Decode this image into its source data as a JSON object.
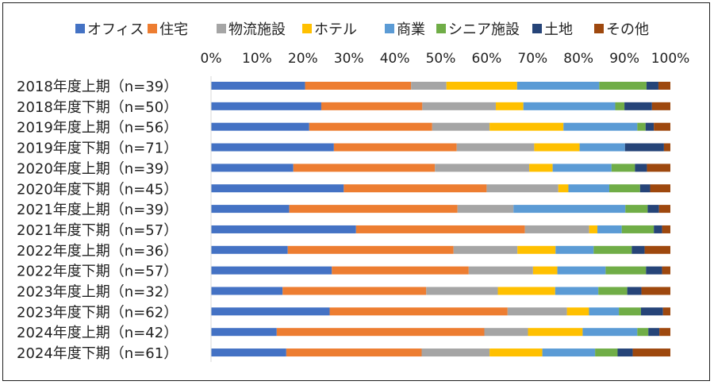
{
  "chart_data": {
    "type": "bar",
    "orientation": "horizontal",
    "stacked": "percent",
    "title": "",
    "xlabel": "",
    "ylabel": "",
    "xlim": [
      0,
      100
    ],
    "x_ticks": [
      "0%",
      "10%",
      "20%",
      "30%",
      "40%",
      "50%",
      "60%",
      "70%",
      "80%",
      "90%",
      "100%"
    ],
    "grid": false,
    "legend_position": "top",
    "categories": [
      "2018年度上期（n=39）",
      "2018年度下期（n=50）",
      "2019年度上期（n=56）",
      "2019年度下期（n=71）",
      "2020年度上期（n=39）",
      "2020年度下期（n=45）",
      "2021年度上期（n=39）",
      "2021年度下期（n=57）",
      "2022年度上期（n=36）",
      "2022年度下期（n=57）",
      "2023年度上期（n=32）",
      "2023年度下期（n=62）",
      "2024年度上期（n=42）",
      "2024年度下期（n=61）"
    ],
    "series": [
      {
        "name": "オフィス",
        "color": "#4472C4",
        "values": [
          20.5,
          24.0,
          21.4,
          26.8,
          17.9,
          28.9,
          17.9,
          31.6,
          16.7,
          26.3,
          15.6,
          25.8,
          14.3,
          16.4
        ]
      },
      {
        "name": "住宅",
        "color": "#ED7D31",
        "values": [
          23.1,
          22.0,
          26.8,
          26.8,
          30.8,
          31.1,
          38.5,
          36.8,
          36.1,
          29.8,
          31.3,
          38.7,
          45.2,
          29.5
        ]
      },
      {
        "name": "物流施設",
        "color": "#A5A5A5",
        "values": [
          7.7,
          16.0,
          12.5,
          16.9,
          20.5,
          15.6,
          12.8,
          14.0,
          13.9,
          14.0,
          15.6,
          12.9,
          9.5,
          14.8
        ]
      },
      {
        "name": "ホテル",
        "color": "#FFC000",
        "values": [
          15.4,
          6.0,
          16.1,
          9.9,
          5.1,
          2.2,
          0.0,
          1.8,
          8.3,
          5.3,
          12.5,
          4.8,
          11.9,
          11.5
        ]
      },
      {
        "name": "商業",
        "color": "#5B9BD5",
        "values": [
          17.9,
          20.0,
          16.1,
          9.9,
          12.8,
          8.9,
          25.6,
          5.3,
          8.3,
          10.5,
          9.4,
          6.5,
          11.9,
          11.5
        ]
      },
      {
        "name": "シニア施設",
        "color": "#70AD47",
        "values": [
          10.3,
          2.0,
          1.8,
          0.0,
          5.1,
          6.7,
          5.1,
          7.0,
          8.3,
          8.8,
          6.3,
          4.8,
          2.4,
          4.9
        ]
      },
      {
        "name": "土地",
        "color": "#264478",
        "values": [
          2.6,
          6.0,
          1.8,
          8.5,
          2.6,
          2.2,
          2.6,
          1.8,
          2.8,
          3.5,
          3.1,
          4.8,
          2.4,
          3.3
        ]
      },
      {
        "name": "その他",
        "color": "#9E480E",
        "values": [
          2.6,
          4.0,
          3.6,
          1.4,
          5.1,
          4.4,
          2.6,
          1.8,
          5.6,
          1.8,
          6.3,
          1.6,
          2.4,
          8.2
        ]
      }
    ]
  }
}
